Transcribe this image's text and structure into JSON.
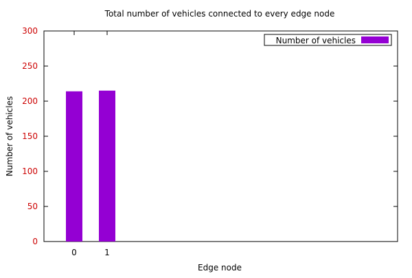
{
  "chart_data": {
    "type": "bar",
    "title": "Total number of vehicles connected to every edge node",
    "xlabel": "Edge node",
    "ylabel": "Number of vehicles",
    "categories": [
      "0",
      "1"
    ],
    "series": [
      {
        "name": "Number of vehicles",
        "values": [
          214,
          215
        ],
        "color": "#9400D3"
      }
    ],
    "ylim": [
      0,
      300
    ],
    "yticks": [
      0,
      50,
      100,
      150,
      200,
      250,
      300
    ],
    "ytick_color": "#cc0000",
    "grid": false,
    "legend_position": "top-right"
  }
}
